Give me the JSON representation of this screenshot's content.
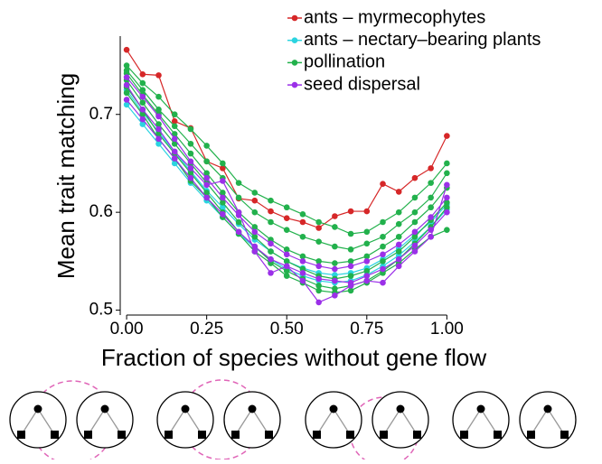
{
  "chart_data": {
    "type": "line",
    "x_label": "Fraction of species without gene flow",
    "y_label": "Mean trait matching",
    "x": [
      0,
      0.05,
      0.1,
      0.15,
      0.2,
      0.25,
      0.3,
      0.35,
      0.4,
      0.45,
      0.5,
      0.55,
      0.6,
      0.65,
      0.7,
      0.75,
      0.8,
      0.85,
      0.9,
      0.95,
      1.0
    ],
    "xlim": [
      -0.02,
      1.03
    ],
    "ylim": [
      0.495,
      0.78
    ],
    "xticks": [
      {
        "value": 0,
        "label": "0.00"
      },
      {
        "value": 0.25,
        "label": "0.25"
      },
      {
        "value": 0.5,
        "label": "0.50"
      },
      {
        "value": 0.75,
        "label": "0.75"
      },
      {
        "value": 1.0,
        "label": "1.00"
      }
    ],
    "yticks": [
      0.5,
      0.6,
      0.7
    ],
    "series": [
      {
        "name": "ants – myrmecophytes",
        "color": "#d62728",
        "values": [
          0.766,
          0.741,
          0.74,
          0.693,
          0.686,
          0.652,
          0.645,
          0.614,
          0.612,
          0.601,
          0.594,
          0.59,
          0.584,
          0.596,
          0.601,
          0.601,
          0.629,
          0.621,
          0.635,
          0.645,
          0.678
        ]
      },
      {
        "name": "ants – nectary–bearing plants",
        "color": "#2bd4e0",
        "values": [
          0.725,
          0.702,
          0.682,
          0.662,
          0.642,
          0.622,
          0.605,
          0.588,
          0.572,
          0.56,
          0.55,
          0.543,
          0.538,
          0.536,
          0.538,
          0.543,
          0.552,
          0.563,
          0.577,
          0.59,
          0.608
        ]
      },
      {
        "name": "ants – nectary–bearing plants",
        "color": "#2bd4e0",
        "values": [
          0.71,
          0.69,
          0.67,
          0.65,
          0.63,
          0.612,
          0.595,
          0.578,
          0.564,
          0.552,
          0.542,
          0.535,
          0.53,
          0.528,
          0.53,
          0.536,
          0.545,
          0.556,
          0.57,
          0.585,
          0.603
        ]
      },
      {
        "name": "pollination",
        "color": "#22b14c",
        "values": [
          0.75,
          0.732,
          0.718,
          0.7,
          0.685,
          0.668,
          0.65,
          0.63,
          0.62,
          0.612,
          0.605,
          0.598,
          0.59,
          0.585,
          0.578,
          0.58,
          0.59,
          0.6,
          0.615,
          0.63,
          0.65
        ]
      },
      {
        "name": "pollination",
        "color": "#22b14c",
        "values": [
          0.742,
          0.72,
          0.7,
          0.68,
          0.66,
          0.64,
          0.62,
          0.6,
          0.585,
          0.572,
          0.562,
          0.555,
          0.55,
          0.548,
          0.55,
          0.555,
          0.565,
          0.575,
          0.59,
          0.605,
          0.625
        ]
      },
      {
        "name": "pollination",
        "color": "#22b14c",
        "values": [
          0.735,
          0.712,
          0.69,
          0.67,
          0.65,
          0.63,
          0.61,
          0.59,
          0.575,
          0.56,
          0.55,
          0.542,
          0.535,
          0.532,
          0.535,
          0.54,
          0.55,
          0.56,
          0.575,
          0.592,
          0.61
        ]
      },
      {
        "name": "pollination",
        "color": "#22b14c",
        "values": [
          0.728,
          0.705,
          0.68,
          0.66,
          0.64,
          0.62,
          0.6,
          0.58,
          0.565,
          0.55,
          0.54,
          0.532,
          0.525,
          0.522,
          0.525,
          0.53,
          0.54,
          0.552,
          0.568,
          0.585,
          0.605
        ]
      },
      {
        "name": "pollination",
        "color": "#22b14c",
        "values": [
          0.722,
          0.7,
          0.675,
          0.655,
          0.632,
          0.615,
          0.595,
          0.578,
          0.56,
          0.548,
          0.535,
          0.528,
          0.52,
          0.518,
          0.52,
          0.528,
          0.538,
          0.548,
          0.562,
          0.575,
          0.582
        ]
      },
      {
        "name": "pollination",
        "color": "#22b14c",
        "values": [
          0.745,
          0.725,
          0.705,
          0.688,
          0.67,
          0.652,
          0.635,
          0.615,
          0.6,
          0.59,
          0.582,
          0.575,
          0.57,
          0.565,
          0.562,
          0.568,
          0.575,
          0.588,
          0.6,
          0.615,
          0.64
        ]
      },
      {
        "name": "seed dispersal",
        "color": "#9b30e8",
        "values": [
          0.73,
          0.705,
          0.685,
          0.662,
          0.645,
          0.628,
          0.632,
          0.6,
          0.56,
          0.538,
          0.545,
          0.53,
          0.508,
          0.515,
          0.525,
          0.53,
          0.528,
          0.545,
          0.56,
          0.575,
          0.628
        ]
      },
      {
        "name": "seed dispersal",
        "color": "#9b30e8",
        "values": [
          0.715,
          0.695,
          0.675,
          0.655,
          0.635,
          0.615,
          0.598,
          0.58,
          0.565,
          0.552,
          0.545,
          0.538,
          0.532,
          0.53,
          0.528,
          0.535,
          0.542,
          0.552,
          0.566,
          0.582,
          0.6
        ]
      },
      {
        "name": "seed dispersal",
        "color": "#9b30e8",
        "values": [
          0.738,
          0.718,
          0.698,
          0.675,
          0.652,
          0.635,
          0.615,
          0.597,
          0.58,
          0.568,
          0.557,
          0.55,
          0.545,
          0.542,
          0.545,
          0.55,
          0.557,
          0.567,
          0.58,
          0.595,
          0.615
        ]
      }
    ]
  }
}
